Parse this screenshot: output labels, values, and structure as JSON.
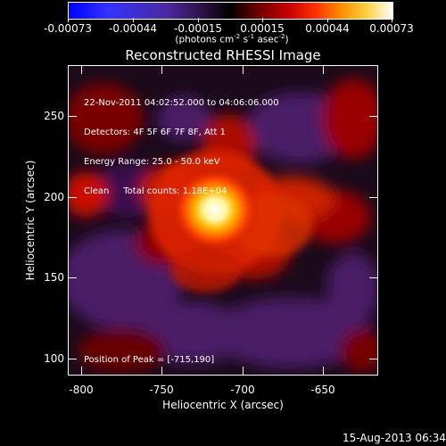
{
  "colorbar": {
    "ticks": [
      "-0.00073",
      "-0.00044",
      "-0.00015",
      "0.00015",
      "0.00044",
      "0.00073"
    ],
    "units_label": "(photons cm",
    "units_exp1": "-2",
    "units_mid": " s",
    "units_exp2": "-1",
    "units_mid2": " asec",
    "units_exp3": "-2",
    "units_end": ")"
  },
  "image": {
    "title": "Reconstructed RHESSI Image",
    "info_lines": [
      "22-Nov-2011 04:02:52.000 to 04:06:06.000",
      "Detectors: 4F 5F 6F 7F 8F, Att 1",
      "Energy Range: 25.0 - 50.0 keV",
      "Clean     Total counts: 1.18E+04"
    ],
    "peak_text": "Position of Peak = [-715,190]",
    "xlabel": "Heliocentric X (arcsec)",
    "ylabel": "Heliocentric Y (arcsec)",
    "x_ticks": [
      "-800",
      "-750",
      "-700",
      "-650"
    ],
    "y_ticks": [
      "250",
      "200",
      "150",
      "100"
    ]
  },
  "footer": {
    "timestamp": "15-Aug-2013 06:34"
  },
  "chart_data": {
    "type": "heatmap",
    "title": "Reconstructed RHESSI Image",
    "xlabel": "Heliocentric X (arcsec)",
    "ylabel": "Heliocentric Y (arcsec)",
    "xlim": [
      -810,
      -618
    ],
    "ylim": [
      90,
      282
    ],
    "peak": {
      "x": -715,
      "y": 190
    },
    "colorbar_range": [
      -0.00073,
      0.00073
    ]
  }
}
